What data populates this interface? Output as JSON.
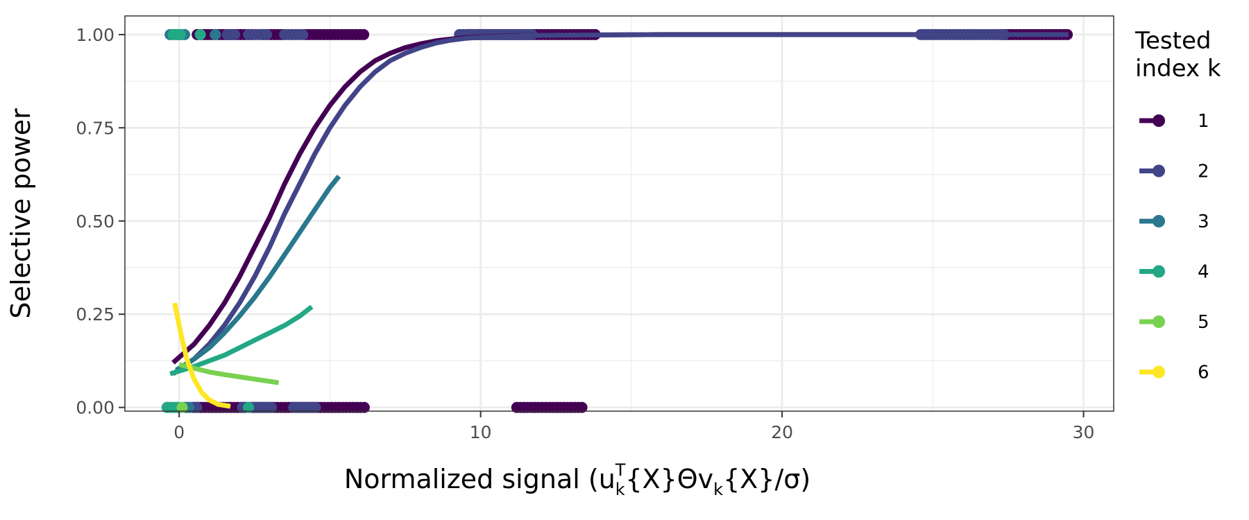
{
  "chart_data": {
    "type": "scatter",
    "title": "",
    "xlabel_main": "Normalized signal (u",
    "xlabel_parts": [
      "Normalized signal (u",
      "k",
      "T",
      "{X}Θv",
      "k",
      "{X}/σ)"
    ],
    "ylabel": "Selective power",
    "xlim": [
      -1.8,
      31
    ],
    "ylim": [
      -0.01,
      1.05
    ],
    "x_ticks": [
      0,
      10,
      20,
      30
    ],
    "x_tick_labels": [
      "0",
      "10",
      "20",
      "30"
    ],
    "y_ticks": [
      0,
      0.25,
      0.5,
      0.75,
      1
    ],
    "y_tick_labels": [
      "0.00",
      "0.25",
      "0.50",
      "0.75",
      "1.00"
    ],
    "grid": true,
    "legend": {
      "title_lines": [
        "Tested",
        "index k"
      ],
      "position": "right",
      "entries": [
        {
          "label": "1",
          "color": "#440154"
        },
        {
          "label": "2",
          "color": "#414487"
        },
        {
          "label": "3",
          "color": "#2a788e"
        },
        {
          "label": "4",
          "color": "#22a884"
        },
        {
          "label": "5",
          "color": "#7ad151"
        },
        {
          "label": "6",
          "color": "#fde725"
        }
      ]
    },
    "series": [
      {
        "name": "1",
        "color": "#440154",
        "curve": {
          "x": [
            -0.2,
            0.5,
            1,
            1.5,
            2,
            2.5,
            3,
            3.5,
            4,
            4.5,
            5,
            5.5,
            6,
            6.5,
            7,
            7.5,
            8,
            8.5,
            9,
            9.5,
            10,
            11,
            12,
            14,
            16,
            20,
            25,
            29.5
          ],
          "y": [
            0.12,
            0.17,
            0.22,
            0.28,
            0.35,
            0.43,
            0.51,
            0.6,
            0.68,
            0.75,
            0.81,
            0.86,
            0.9,
            0.93,
            0.95,
            0.965,
            0.975,
            0.983,
            0.988,
            0.992,
            0.994,
            0.997,
            0.998,
            0.999,
            1.0,
            1.0,
            1.0,
            1.0
          ]
        },
        "points_at_1": [
          [
            0.6,
            2.4
          ],
          [
            2.8,
            3.4
          ],
          [
            4.2,
            6.2
          ],
          [
            9.6,
            13.9
          ],
          [
            27.3,
            29.5
          ]
        ],
        "points_at_0": [
          [
            0.5,
            6.2
          ],
          [
            11.2,
            13.4
          ]
        ]
      },
      {
        "name": "2",
        "color": "#414487",
        "curve": {
          "x": [
            -0.2,
            0.5,
            1,
            1.5,
            2,
            2.5,
            3,
            3.5,
            4,
            4.5,
            5,
            5.5,
            6,
            6.5,
            7,
            7.5,
            8,
            8.5,
            9,
            9.5,
            10,
            11,
            12,
            14,
            16,
            20,
            25,
            29.5
          ],
          "y": [
            0.09,
            0.13,
            0.17,
            0.22,
            0.28,
            0.35,
            0.43,
            0.52,
            0.6,
            0.68,
            0.75,
            0.81,
            0.86,
            0.9,
            0.93,
            0.95,
            0.965,
            0.977,
            0.985,
            0.99,
            0.993,
            0.996,
            0.998,
            0.999,
            1.0,
            1.0,
            1.0,
            1.0
          ]
        },
        "points_at_1": [
          [
            1.6,
            1.9
          ],
          [
            2.3,
            2.9
          ],
          [
            3.5,
            4.1
          ],
          [
            9.3,
            11.7
          ],
          [
            24.6,
            27.4
          ]
        ],
        "points_at_0": [
          [
            0.1,
            0.6
          ],
          [
            2.1,
            3.1
          ],
          [
            3.8,
            4.6
          ]
        ]
      },
      {
        "name": "3",
        "color": "#2a788e",
        "curve": {
          "x": [
            -0.1,
            0.5,
            1,
            1.5,
            2,
            2.5,
            3,
            3.5,
            4,
            4.5,
            5,
            5.3
          ],
          "y": [
            0.1,
            0.13,
            0.16,
            0.2,
            0.245,
            0.295,
            0.35,
            0.41,
            0.47,
            0.53,
            0.59,
            0.62
          ]
        },
        "points_at_1": [
          [
            -0.3,
            0.2
          ],
          [
            1.2,
            1.3
          ]
        ],
        "points_at_0": [
          [
            -0.4,
            0.4
          ]
        ]
      },
      {
        "name": "4",
        "color": "#22a884",
        "curve": {
          "x": [
            -0.3,
            0.5,
            1,
            1.5,
            2,
            2.5,
            3,
            3.5,
            4,
            4.4
          ],
          "y": [
            0.09,
            0.11,
            0.125,
            0.14,
            0.16,
            0.18,
            0.2,
            0.22,
            0.245,
            0.27
          ]
        },
        "points_at_1": [
          [
            -0.2,
            0.1
          ],
          [
            0.7,
            0.7
          ]
        ],
        "points_at_0": [
          [
            -0.4,
            0.0
          ],
          [
            2.3,
            2.3
          ]
        ]
      },
      {
        "name": "5",
        "color": "#7ad151",
        "curve": {
          "x": [
            0,
            0.5,
            1,
            1.5,
            2,
            2.5,
            3,
            3.3
          ],
          "y": [
            0.115,
            0.105,
            0.095,
            0.088,
            0.082,
            0.076,
            0.07,
            0.066
          ]
        },
        "points_at_1": [],
        "points_at_0": [
          [
            0.1,
            0.2
          ]
        ]
      },
      {
        "name": "6",
        "color": "#fde725",
        "curve": {
          "x": [
            -0.15,
            0.05,
            0.25,
            0.5,
            0.75,
            1.0,
            1.3,
            1.7
          ],
          "y": [
            0.28,
            0.2,
            0.13,
            0.075,
            0.04,
            0.02,
            0.008,
            0.003
          ]
        },
        "points_at_1": [],
        "points_at_0": []
      }
    ]
  }
}
